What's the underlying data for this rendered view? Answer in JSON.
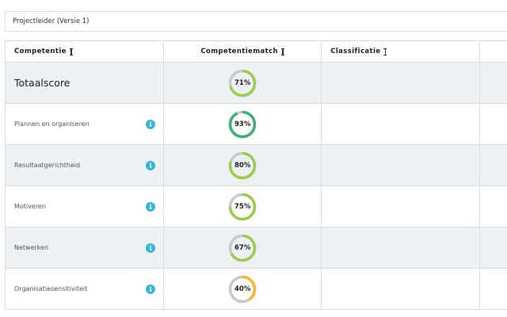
{
  "selector": {
    "value": "Projectleider (Versie 1)"
  },
  "table": {
    "headers": {
      "competentie": "Competentie",
      "competentiematch": "Competentiematch",
      "classificatie": "Classificatie"
    },
    "rows": [
      {
        "name": "Totaalscore",
        "match_label": "71%",
        "match_value": 71,
        "color": "#9ccc4a",
        "total": true
      },
      {
        "name": "Plannen en organiseren",
        "match_label": "93%",
        "match_value": 93,
        "color": "#3fae78",
        "total": false
      },
      {
        "name": "Resultaatgerichtheid",
        "match_label": "80%",
        "match_value": 80,
        "color": "#9ccc4a",
        "total": false
      },
      {
        "name": "Motiveren",
        "match_label": "75%",
        "match_value": 75,
        "color": "#9ccc4a",
        "total": false
      },
      {
        "name": "Netwerken",
        "match_label": "67%",
        "match_value": 67,
        "color": "#9ccc4a",
        "total": false
      },
      {
        "name": "Organisatiesensitiviteit",
        "match_label": "40%",
        "match_value": 40,
        "color": "#f5b82e",
        "total": false
      }
    ]
  },
  "colors": {
    "gauge_track": "#c9c9c9",
    "info_icon": "#3db4d6",
    "row_shaded": "#edf0f4"
  },
  "icons": {
    "info": "info-icon",
    "sort": "sort-icon"
  }
}
